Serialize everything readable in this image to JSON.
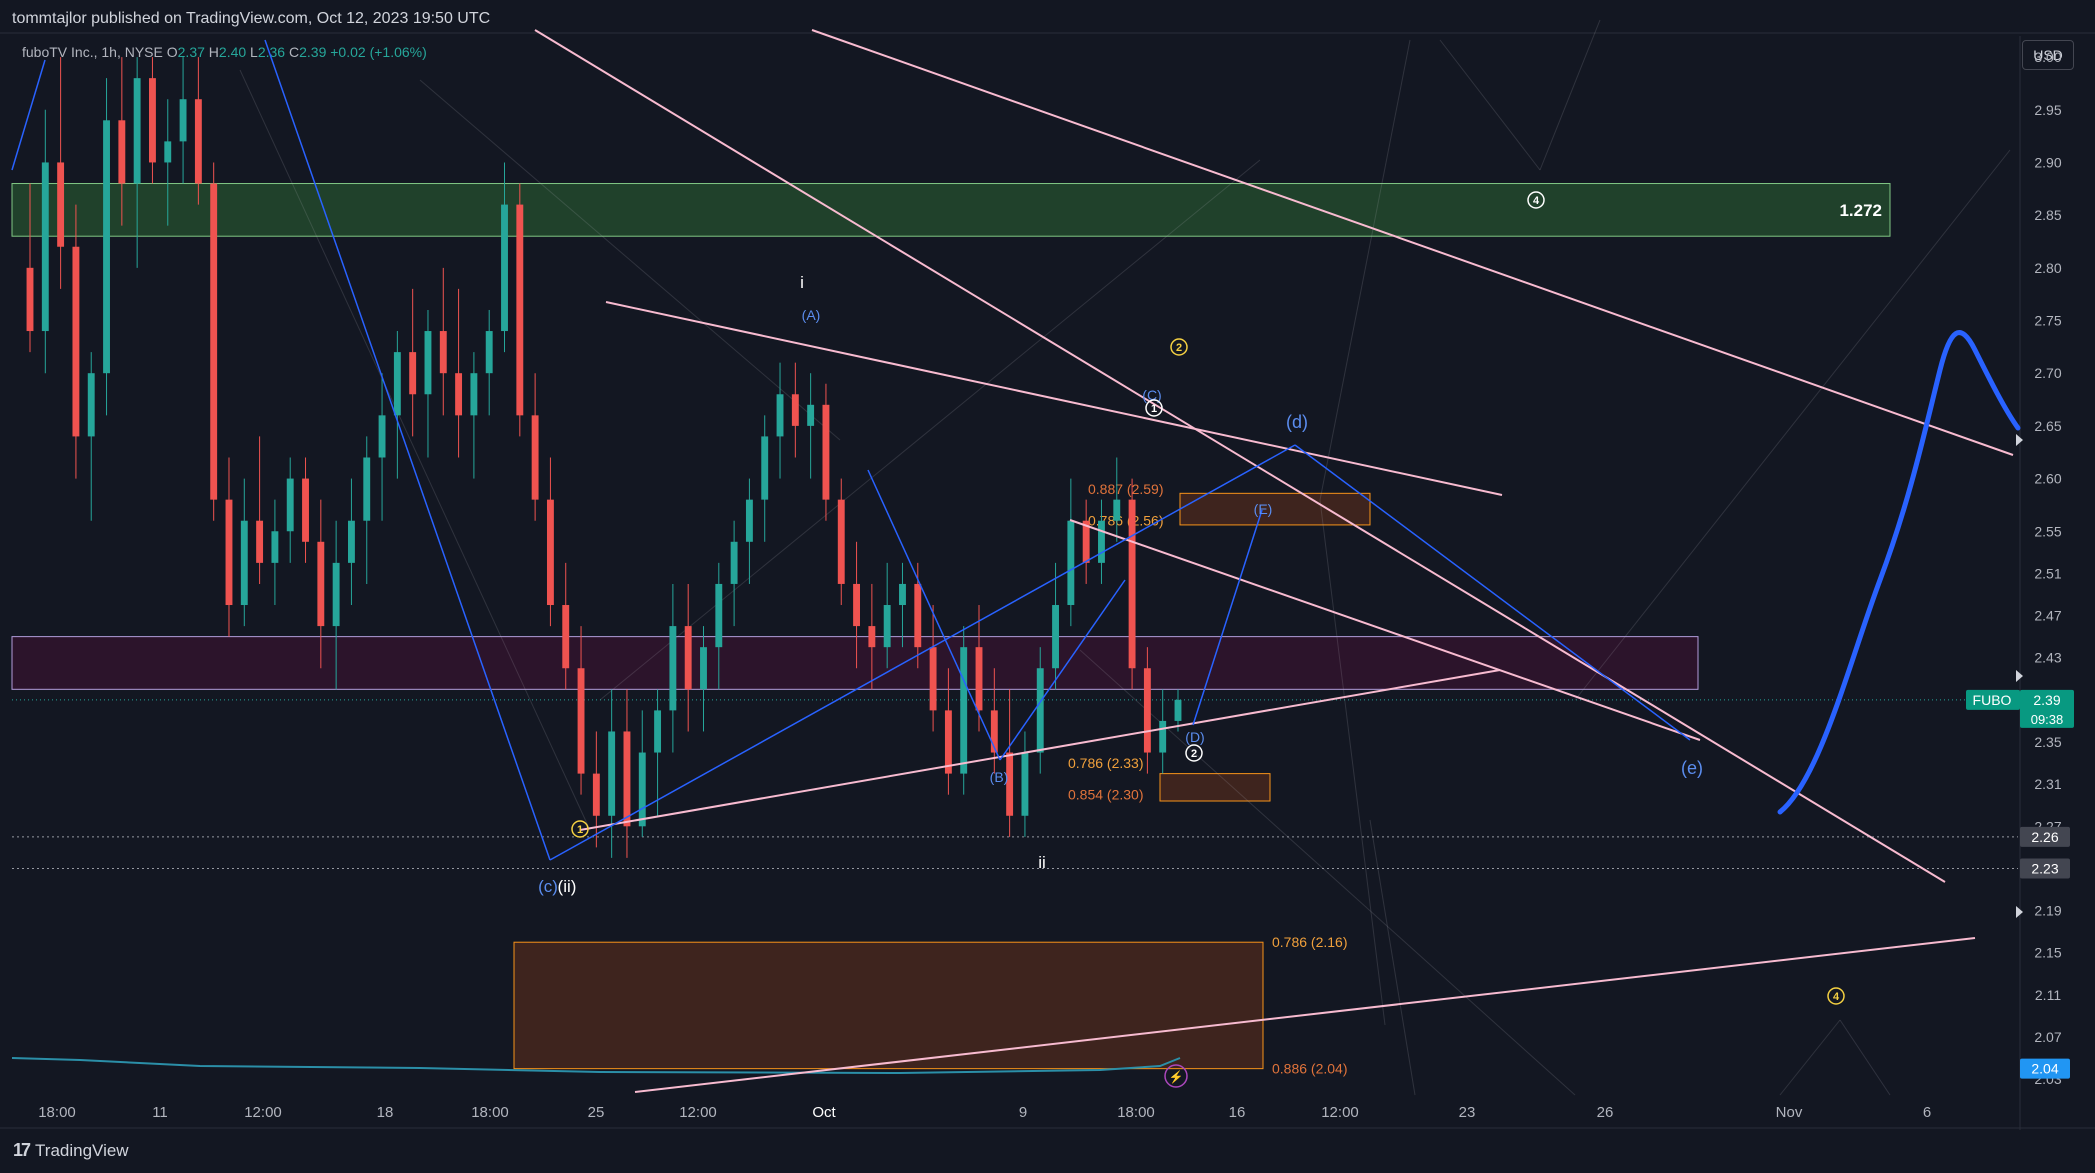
{
  "header": {
    "publisher_line": "tommtajlor published on TradingView.com, Oct 12, 2023 19:50 UTC"
  },
  "legend": {
    "symbol": "fuboTV Inc., 1h, NYSE",
    "open_label": "O",
    "open": "2.37",
    "high_label": "H",
    "high": "2.40",
    "low_label": "L",
    "low": "2.36",
    "close_label": "C",
    "close": "2.39",
    "change": "+0.02 (+1.06%)"
  },
  "currency_button": "USD",
  "footer": {
    "brand": "TradingView"
  },
  "colors": {
    "background": "#131722",
    "up": "#26a69a",
    "down": "#ef5350",
    "pink_line": "#f8bbd0",
    "blue_line": "#2962ff",
    "orange_fib": "#f7931a",
    "green_zone": "#1b5e20",
    "purple_zone": "#4a1942"
  },
  "chart_data": {
    "type": "candlestick",
    "symbol": "FUBO",
    "interval": "1h",
    "exchange": "NYSE",
    "currency": "USD",
    "ylim": [
      2.015,
      3.02
    ],
    "y_ticks": [
      "3.00",
      "2.95",
      "2.90",
      "2.85",
      "2.80",
      "2.75",
      "2.70",
      "2.65",
      "2.60",
      "2.55",
      "2.51",
      "2.47",
      "2.43",
      "2.35",
      "2.31",
      "2.27",
      "2.19",
      "2.15",
      "2.11",
      "2.07",
      "2.03"
    ],
    "x_ticks": [
      "18:00",
      "11",
      "12:00",
      "18",
      "18:00",
      "25",
      "12:00",
      "Oct",
      "9",
      "18:00",
      "16",
      "12:00",
      "23",
      "26",
      "Nov",
      "6"
    ],
    "last_price": {
      "symbol": "FUBO",
      "price": "2.39",
      "countdown": "09:38"
    },
    "price_marks": [
      "2.26",
      "2.23",
      "2.04"
    ],
    "zones": [
      {
        "name": "resistance-zone",
        "top": 2.88,
        "bottom": 2.83,
        "label": "1.272"
      },
      {
        "name": "support-zone",
        "top": 2.45,
        "bottom": 2.4
      }
    ],
    "fib_levels": [
      {
        "label": "0.887 (2.59)",
        "price": 2.59
      },
      {
        "label": "0.786 (2.56)",
        "price": 2.56
      },
      {
        "label": "0.786 (2.33)",
        "price": 2.33
      },
      {
        "label": "0.854 (2.30)",
        "price": 2.3
      },
      {
        "label": "0.786 (2.16)",
        "price": 2.16
      },
      {
        "label": "0.886 (2.04)",
        "price": 2.04
      }
    ],
    "wave_labels": [
      "i",
      "ii",
      "(ii)",
      "(A)",
      "(B)",
      "(C)",
      "(D)",
      "(E)",
      "(d)",
      "(e)",
      "(c)",
      "1",
      "2",
      "4",
      "2",
      "1",
      "2",
      "4"
    ],
    "candles": [
      {
        "o": 2.8,
        "h": 2.88,
        "l": 2.72,
        "c": 2.74
      },
      {
        "o": 2.74,
        "h": 2.95,
        "l": 2.7,
        "c": 2.9
      },
      {
        "o": 2.9,
        "h": 3.0,
        "l": 2.78,
        "c": 2.82
      },
      {
        "o": 2.82,
        "h": 2.86,
        "l": 2.6,
        "c": 2.64
      },
      {
        "o": 2.64,
        "h": 2.72,
        "l": 2.56,
        "c": 2.7
      },
      {
        "o": 2.7,
        "h": 2.98,
        "l": 2.66,
        "c": 2.94
      },
      {
        "o": 2.94,
        "h": 3.0,
        "l": 2.84,
        "c": 2.88
      },
      {
        "o": 2.88,
        "h": 3.0,
        "l": 2.8,
        "c": 2.98
      },
      {
        "o": 2.98,
        "h": 3.0,
        "l": 2.88,
        "c": 2.9
      },
      {
        "o": 2.9,
        "h": 2.96,
        "l": 2.84,
        "c": 2.92
      },
      {
        "o": 2.92,
        "h": 3.0,
        "l": 2.88,
        "c": 2.96
      },
      {
        "o": 2.96,
        "h": 3.0,
        "l": 2.86,
        "c": 2.88
      },
      {
        "o": 2.88,
        "h": 2.9,
        "l": 2.56,
        "c": 2.58
      },
      {
        "o": 2.58,
        "h": 2.62,
        "l": 2.45,
        "c": 2.48
      },
      {
        "o": 2.48,
        "h": 2.6,
        "l": 2.46,
        "c": 2.56
      },
      {
        "o": 2.56,
        "h": 2.64,
        "l": 2.5,
        "c": 2.52
      },
      {
        "o": 2.52,
        "h": 2.58,
        "l": 2.48,
        "c": 2.55
      },
      {
        "o": 2.55,
        "h": 2.62,
        "l": 2.52,
        "c": 2.6
      },
      {
        "o": 2.6,
        "h": 2.62,
        "l": 2.52,
        "c": 2.54
      },
      {
        "o": 2.54,
        "h": 2.58,
        "l": 2.42,
        "c": 2.46
      },
      {
        "o": 2.46,
        "h": 2.56,
        "l": 2.4,
        "c": 2.52
      },
      {
        "o": 2.52,
        "h": 2.6,
        "l": 2.48,
        "c": 2.56
      },
      {
        "o": 2.56,
        "h": 2.64,
        "l": 2.5,
        "c": 2.62
      },
      {
        "o": 2.62,
        "h": 2.7,
        "l": 2.56,
        "c": 2.66
      },
      {
        "o": 2.66,
        "h": 2.74,
        "l": 2.6,
        "c": 2.72
      },
      {
        "o": 2.72,
        "h": 2.78,
        "l": 2.64,
        "c": 2.68
      },
      {
        "o": 2.68,
        "h": 2.76,
        "l": 2.62,
        "c": 2.74
      },
      {
        "o": 2.74,
        "h": 2.8,
        "l": 2.66,
        "c": 2.7
      },
      {
        "o": 2.7,
        "h": 2.78,
        "l": 2.62,
        "c": 2.66
      },
      {
        "o": 2.66,
        "h": 2.72,
        "l": 2.6,
        "c": 2.7
      },
      {
        "o": 2.7,
        "h": 2.76,
        "l": 2.66,
        "c": 2.74
      },
      {
        "o": 2.74,
        "h": 2.9,
        "l": 2.72,
        "c": 2.86
      },
      {
        "o": 2.86,
        "h": 2.88,
        "l": 2.64,
        "c": 2.66
      },
      {
        "o": 2.66,
        "h": 2.7,
        "l": 2.56,
        "c": 2.58
      },
      {
        "o": 2.58,
        "h": 2.62,
        "l": 2.46,
        "c": 2.48
      },
      {
        "o": 2.48,
        "h": 2.52,
        "l": 2.4,
        "c": 2.42
      },
      {
        "o": 2.42,
        "h": 2.46,
        "l": 2.3,
        "c": 2.32
      },
      {
        "o": 2.32,
        "h": 2.36,
        "l": 2.25,
        "c": 2.28
      },
      {
        "o": 2.28,
        "h": 2.4,
        "l": 2.24,
        "c": 2.36
      },
      {
        "o": 2.36,
        "h": 2.4,
        "l": 2.24,
        "c": 2.27
      },
      {
        "o": 2.27,
        "h": 2.38,
        "l": 2.26,
        "c": 2.34
      },
      {
        "o": 2.34,
        "h": 2.4,
        "l": 2.28,
        "c": 2.38
      },
      {
        "o": 2.38,
        "h": 2.5,
        "l": 2.34,
        "c": 2.46
      },
      {
        "o": 2.46,
        "h": 2.5,
        "l": 2.36,
        "c": 2.4
      },
      {
        "o": 2.4,
        "h": 2.46,
        "l": 2.36,
        "c": 2.44
      },
      {
        "o": 2.44,
        "h": 2.52,
        "l": 2.4,
        "c": 2.5
      },
      {
        "o": 2.5,
        "h": 2.56,
        "l": 2.46,
        "c": 2.54
      },
      {
        "o": 2.54,
        "h": 2.6,
        "l": 2.5,
        "c": 2.58
      },
      {
        "o": 2.58,
        "h": 2.66,
        "l": 2.54,
        "c": 2.64
      },
      {
        "o": 2.64,
        "h": 2.71,
        "l": 2.6,
        "c": 2.68
      },
      {
        "o": 2.68,
        "h": 2.71,
        "l": 2.62,
        "c": 2.65
      },
      {
        "o": 2.65,
        "h": 2.7,
        "l": 2.6,
        "c": 2.67
      },
      {
        "o": 2.67,
        "h": 2.69,
        "l": 2.56,
        "c": 2.58
      },
      {
        "o": 2.58,
        "h": 2.6,
        "l": 2.48,
        "c": 2.5
      },
      {
        "o": 2.5,
        "h": 2.54,
        "l": 2.42,
        "c": 2.46
      },
      {
        "o": 2.46,
        "h": 2.5,
        "l": 2.4,
        "c": 2.44
      },
      {
        "o": 2.44,
        "h": 2.52,
        "l": 2.42,
        "c": 2.48
      },
      {
        "o": 2.48,
        "h": 2.52,
        "l": 2.44,
        "c": 2.5
      },
      {
        "o": 2.5,
        "h": 2.52,
        "l": 2.42,
        "c": 2.44
      },
      {
        "o": 2.44,
        "h": 2.48,
        "l": 2.36,
        "c": 2.38
      },
      {
        "o": 2.38,
        "h": 2.42,
        "l": 2.3,
        "c": 2.32
      },
      {
        "o": 2.32,
        "h": 2.46,
        "l": 2.3,
        "c": 2.44
      },
      {
        "o": 2.44,
        "h": 2.48,
        "l": 2.36,
        "c": 2.38
      },
      {
        "o": 2.38,
        "h": 2.42,
        "l": 2.32,
        "c": 2.34
      },
      {
        "o": 2.34,
        "h": 2.4,
        "l": 2.26,
        "c": 2.28
      },
      {
        "o": 2.28,
        "h": 2.36,
        "l": 2.26,
        "c": 2.34
      },
      {
        "o": 2.34,
        "h": 2.44,
        "l": 2.32,
        "c": 2.42
      },
      {
        "o": 2.42,
        "h": 2.52,
        "l": 2.4,
        "c": 2.48
      },
      {
        "o": 2.48,
        "h": 2.6,
        "l": 2.46,
        "c": 2.56
      },
      {
        "o": 2.56,
        "h": 2.58,
        "l": 2.5,
        "c": 2.52
      },
      {
        "o": 2.52,
        "h": 2.58,
        "l": 2.5,
        "c": 2.56
      },
      {
        "o": 2.56,
        "h": 2.62,
        "l": 2.54,
        "c": 2.58
      },
      {
        "o": 2.58,
        "h": 2.6,
        "l": 2.4,
        "c": 2.42
      },
      {
        "o": 2.42,
        "h": 2.44,
        "l": 2.32,
        "c": 2.34
      },
      {
        "o": 2.34,
        "h": 2.4,
        "l": 2.32,
        "c": 2.37
      },
      {
        "o": 2.37,
        "h": 2.4,
        "l": 2.36,
        "c": 2.39
      }
    ],
    "forecast_path": [
      2.25,
      2.3,
      2.45,
      2.58,
      2.7,
      2.66
    ]
  }
}
